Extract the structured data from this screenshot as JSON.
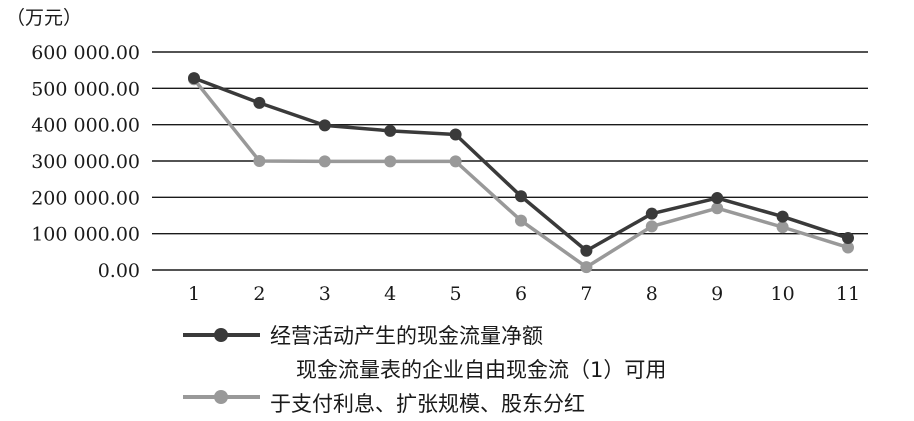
{
  "chart_data": {
    "type": "line",
    "unit_label": "（万元）",
    "x": [
      "1",
      "2",
      "3",
      "4",
      "5",
      "6",
      "7",
      "8",
      "9",
      "10",
      "11"
    ],
    "ylim": [
      0,
      600000
    ],
    "yticks": [
      "0.00",
      "100 000.00",
      "200 000.00",
      "300 000.00",
      "400 000.00",
      "500 000.00",
      "600 000.00"
    ],
    "grid": true,
    "legend_position": "bottom-left",
    "series": [
      {
        "name": "经营活动产生的现金流量净额",
        "color": "#3a3a3a",
        "values": [
          528000,
          460000,
          398000,
          383000,
          373000,
          203000,
          53000,
          155000,
          198000,
          147000,
          88000
        ]
      },
      {
        "name_lines": [
          "现金流量表的企业自由现金流（1）可用",
          "于支付利息、扩张规模、股东分红"
        ],
        "color": "#999999",
        "values": [
          525000,
          300000,
          299000,
          299000,
          299000,
          136000,
          8000,
          120000,
          170000,
          118000,
          62000
        ]
      }
    ]
  }
}
